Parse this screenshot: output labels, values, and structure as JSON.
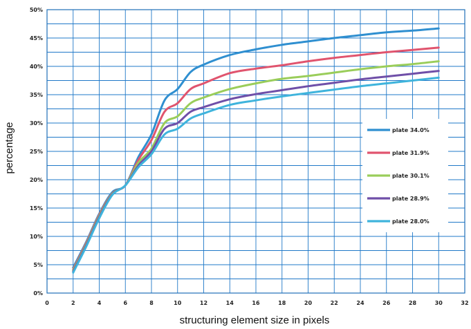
{
  "chart_data": {
    "type": "line",
    "xlabel": "structuring element size in pixels",
    "ylabel": "percentage",
    "xlim": [
      0,
      32
    ],
    "ylim": [
      0,
      50
    ],
    "x_ticks": [
      0,
      2,
      4,
      6,
      8,
      10,
      12,
      14,
      16,
      18,
      20,
      22,
      24,
      26,
      28,
      30,
      32
    ],
    "y_ticks": [
      "0%",
      "5%",
      "10%",
      "15%",
      "20%",
      "25%",
      "30%",
      "35%",
      "40%",
      "45%",
      "50%"
    ],
    "grid": true,
    "legend_position": "right",
    "x": [
      2,
      3,
      4,
      5,
      6,
      7,
      8,
      9,
      10,
      11,
      12,
      14,
      16,
      18,
      20,
      22,
      24,
      26,
      28,
      30
    ],
    "series": [
      {
        "name": "plate 34.0%",
        "color": "#2f8fd0",
        "values": [
          4.5,
          9,
          14,
          17.8,
          19,
          24,
          28,
          34,
          36,
          39,
          40.3,
          42,
          43,
          43.8,
          44.4,
          45,
          45.5,
          46,
          46.3,
          46.7
        ]
      },
      {
        "name": "plate 31.9%",
        "color": "#e0546e",
        "values": [
          4.2,
          8.8,
          13.8,
          17.6,
          19,
          23.5,
          27,
          32,
          33.5,
          36,
          37,
          38.8,
          39.6,
          40.2,
          40.9,
          41.5,
          42,
          42.5,
          42.9,
          43.3
        ]
      },
      {
        "name": "plate 30.1%",
        "color": "#9acd5a",
        "values": [
          4,
          8.6,
          13.6,
          17.5,
          19,
          23,
          25.5,
          30,
          31.2,
          33.5,
          34.5,
          36,
          37,
          37.8,
          38.3,
          38.9,
          39.5,
          40,
          40.4,
          40.9
        ]
      },
      {
        "name": "plate 28.9%",
        "color": "#6f4fa8",
        "values": [
          3.8,
          8.4,
          13.4,
          17.4,
          19,
          22.5,
          25,
          29,
          30,
          32,
          32.8,
          34.2,
          35.1,
          35.8,
          36.5,
          37.1,
          37.7,
          38.2,
          38.7,
          39.2
        ]
      },
      {
        "name": "plate 28.0%",
        "color": "#3fb4dc",
        "values": [
          3.6,
          8.2,
          13.2,
          17.3,
          19,
          22.2,
          24.5,
          28,
          29,
          30.8,
          31.7,
          33.2,
          34,
          34.7,
          35.3,
          35.9,
          36.5,
          37,
          37.5,
          38
        ]
      }
    ]
  }
}
